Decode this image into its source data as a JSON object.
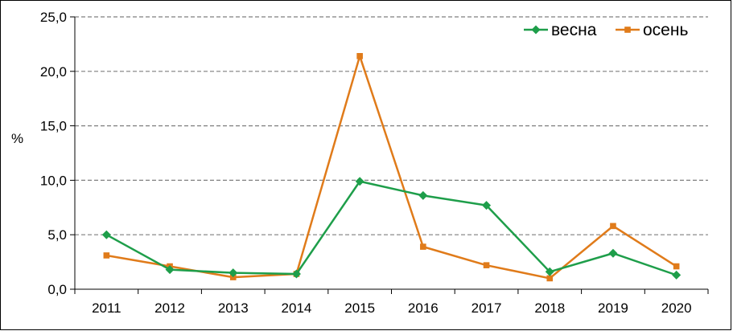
{
  "chart_data": {
    "type": "line",
    "title": "",
    "xlabel": "",
    "ylabel": "%",
    "categories": [
      "2011",
      "2012",
      "2013",
      "2014",
      "2015",
      "2016",
      "2017",
      "2018",
      "2019",
      "2020"
    ],
    "ylim": [
      0,
      25
    ],
    "yticks": [
      "0,0",
      "5,0",
      "10,0",
      "15,0",
      "20,0",
      "25,0"
    ],
    "grid": "horizontal-dashed",
    "legend_position": "top-right",
    "series": [
      {
        "name": "весна",
        "color": "#1e9e4a",
        "marker": "diamond",
        "values": [
          5.0,
          1.8,
          1.5,
          1.4,
          9.9,
          8.6,
          7.7,
          1.6,
          3.3,
          1.3
        ]
      },
      {
        "name": "осень",
        "color": "#e07b1a",
        "marker": "square",
        "values": [
          3.1,
          2.1,
          1.1,
          1.4,
          21.4,
          3.9,
          2.2,
          1.0,
          5.8,
          2.1
        ]
      }
    ]
  }
}
